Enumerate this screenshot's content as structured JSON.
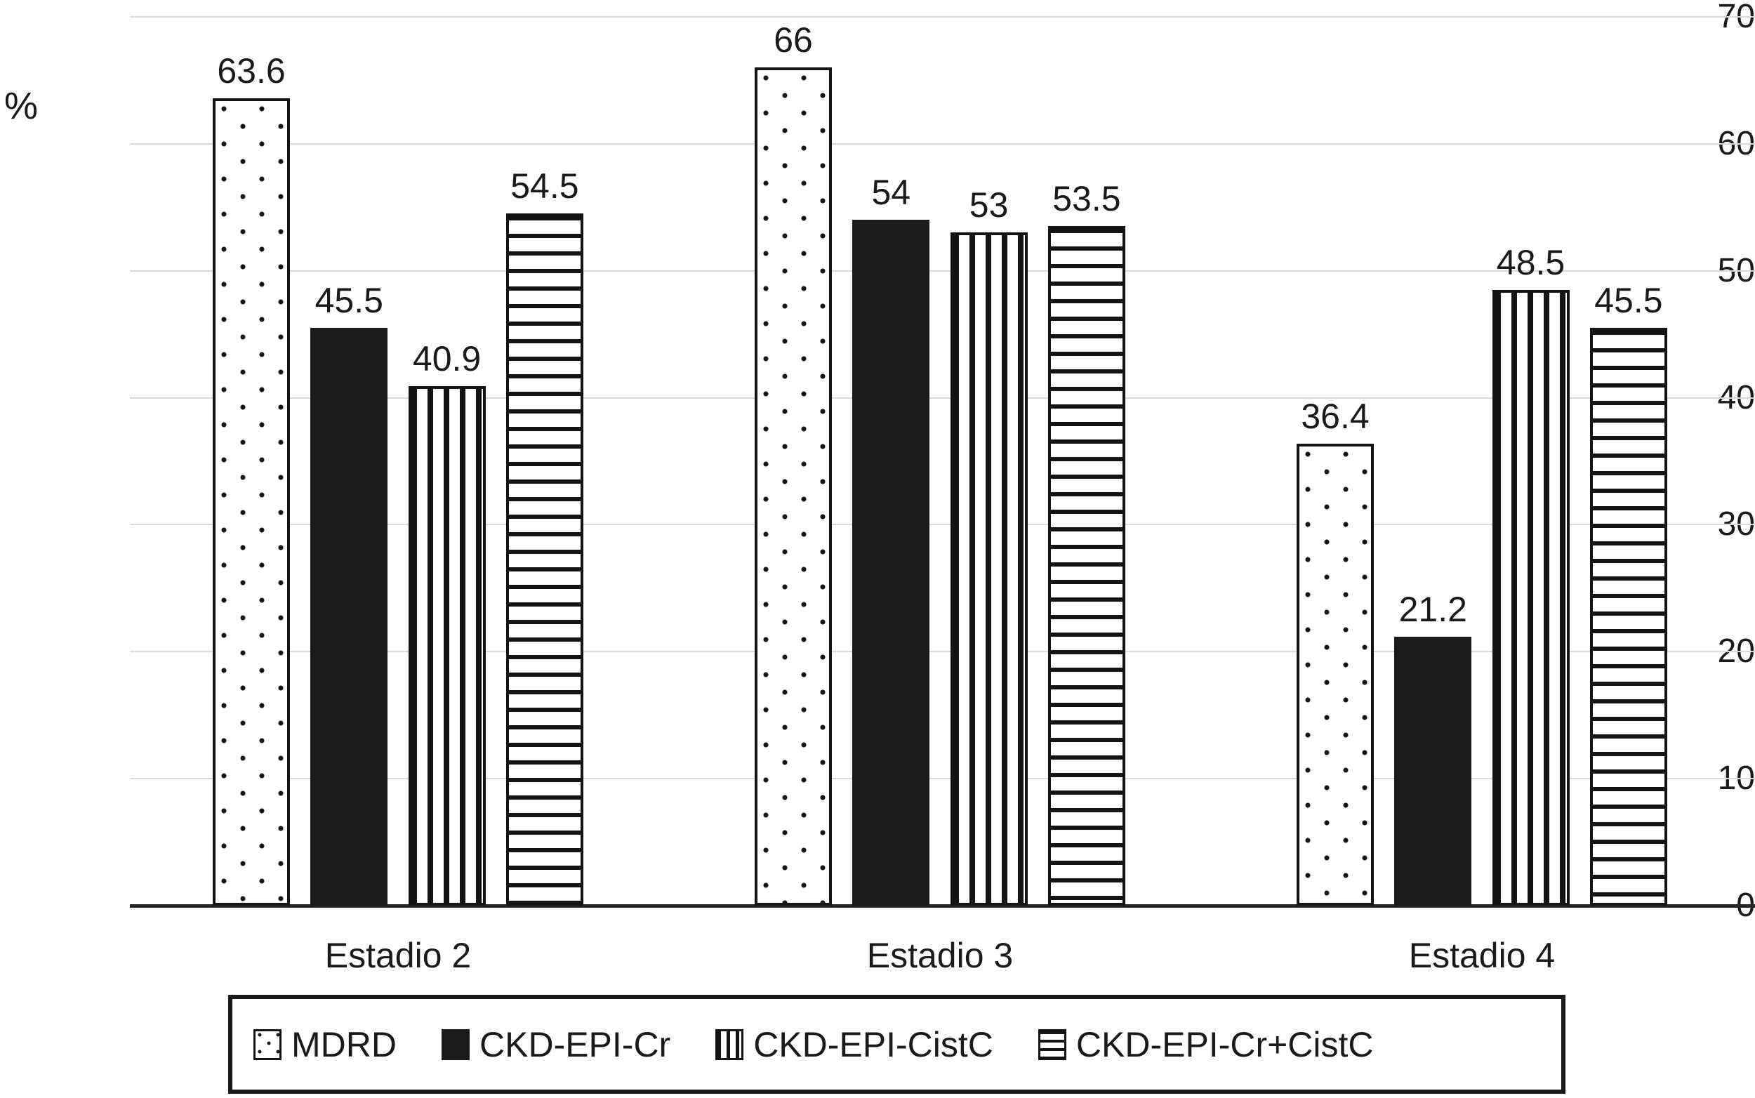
{
  "chart_data": {
    "type": "bar",
    "title": "",
    "ylabel": "%",
    "xlabel": "",
    "categories": [
      "Estadio 2",
      "Estadio 3",
      "Estadio 4"
    ],
    "series": [
      {
        "name": "MDRD",
        "pattern": "dots",
        "values": [
          63.6,
          66,
          36.4
        ]
      },
      {
        "name": "CKD-EPI-Cr",
        "pattern": "solid",
        "values": [
          45.5,
          54,
          21.2
        ]
      },
      {
        "name": "CKD-EPI-CistC",
        "pattern": "vlines",
        "values": [
          40.9,
          53,
          48.5
        ]
      },
      {
        "name": "CKD-EPI-Cr+CistC",
        "pattern": "hlines",
        "values": [
          54.5,
          53.5,
          45.5
        ]
      }
    ],
    "ylim": [
      0,
      70
    ],
    "yticks": [
      0,
      10,
      20,
      30,
      40,
      50,
      60,
      70
    ],
    "grid": true,
    "data_labels_shown": true,
    "legend_position": "bottom",
    "colors": {
      "bar_black": "#1a1a1a",
      "gridline": "#d9d9d9",
      "axis_line": "#262626",
      "text": "#1a1a1a",
      "background": "#ffffff"
    }
  }
}
